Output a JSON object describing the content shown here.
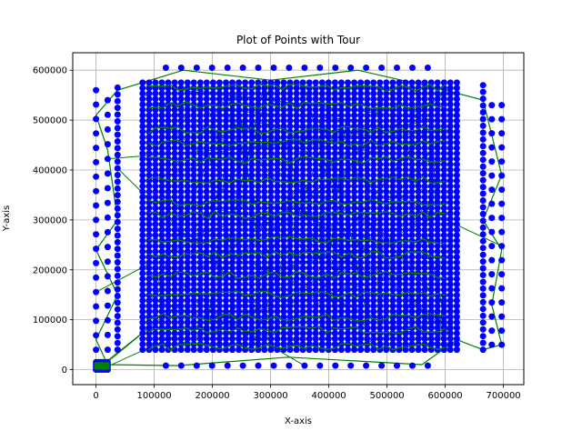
{
  "chart_data": {
    "type": "scatter",
    "title": "Plot of Points with Tour",
    "xlabel": "X-axis",
    "ylabel": "Y-axis",
    "xlim": [
      -40000,
      735000
    ],
    "ylim": [
      -30000,
      635000
    ],
    "x_ticks": [
      0,
      100000,
      200000,
      300000,
      400000,
      500000,
      600000,
      700000
    ],
    "y_ticks": [
      0,
      100000,
      200000,
      300000,
      400000,
      500000,
      600000
    ],
    "x_tick_labels": [
      "0",
      "100000",
      "200000",
      "300000",
      "400000",
      "500000",
      "600000",
      "700000"
    ],
    "y_tick_labels": [
      "0",
      "100000",
      "200000",
      "300000",
      "400000",
      "500000",
      "600000"
    ],
    "grid": true,
    "point_color": "#0000ff",
    "tour_color": "#007f00",
    "groups": [
      {
        "kind": "cluster",
        "x_range": [
          0,
          20000
        ],
        "y_range": [
          0,
          15000
        ],
        "nx": 6,
        "ny": 4
      },
      {
        "kind": "column",
        "x": 0,
        "y_range": [
          40000,
          560000
        ],
        "n": 19
      },
      {
        "kind": "column",
        "x": 20000,
        "y_range": [
          40000,
          540000
        ],
        "n": 18
      },
      {
        "kind": "column",
        "x": 37000,
        "y_range": [
          40000,
          565000
        ],
        "n": 40
      },
      {
        "kind": "grid",
        "x_range": [
          80000,
          620000
        ],
        "y_range": [
          40000,
          575000
        ],
        "nx": 50,
        "ny": 50
      },
      {
        "kind": "row",
        "y": 605000,
        "x_range": [
          120000,
          570000
        ],
        "n": 18
      },
      {
        "kind": "row",
        "y": 8000,
        "x_range": [
          120000,
          570000
        ],
        "n": 18
      },
      {
        "kind": "column",
        "x": 665000,
        "y_range": [
          40000,
          570000
        ],
        "n": 40
      },
      {
        "kind": "column",
        "x": 680000,
        "y_range": [
          50000,
          530000
        ],
        "n": 18
      },
      {
        "kind": "column",
        "x": 697000,
        "y_range": [
          50000,
          530000
        ],
        "n": 18
      }
    ],
    "tour": [
      [
        0,
        0
      ],
      [
        20000,
        10000
      ],
      [
        140000,
        8000
      ],
      [
        330000,
        25000
      ],
      [
        560000,
        10000
      ],
      [
        620000,
        60000
      ],
      [
        665000,
        40000
      ],
      [
        697000,
        50000
      ],
      [
        680000,
        130000
      ],
      [
        697000,
        240000
      ],
      [
        665000,
        300000
      ],
      [
        697000,
        390000
      ],
      [
        680000,
        470000
      ],
      [
        665000,
        540000
      ],
      [
        600000,
        560000
      ],
      [
        450000,
        600000
      ],
      [
        300000,
        580000
      ],
      [
        150000,
        600000
      ],
      [
        37000,
        560000
      ],
      [
        0,
        510000
      ],
      [
        20000,
        440000
      ],
      [
        37000,
        300000
      ],
      [
        0,
        240000
      ],
      [
        37000,
        150000
      ],
      [
        0,
        60000
      ],
      [
        20000,
        10000
      ]
    ],
    "bands": [
      {
        "y": 45000,
        "x_range": [
          90000,
          600000
        ]
      },
      {
        "y": 80000,
        "x_range": [
          90000,
          600000
        ]
      },
      {
        "y": 105000,
        "x_range": [
          90000,
          600000
        ]
      },
      {
        "y": 150000,
        "x_range": [
          90000,
          600000
        ]
      },
      {
        "y": 190000,
        "x_range": [
          90000,
          600000
        ]
      },
      {
        "y": 230000,
        "x_range": [
          90000,
          600000
        ]
      },
      {
        "y": 260000,
        "x_range": [
          90000,
          600000
        ]
      },
      {
        "y": 310000,
        "x_range": [
          90000,
          600000
        ]
      },
      {
        "y": 335000,
        "x_range": [
          90000,
          600000
        ]
      },
      {
        "y": 380000,
        "x_range": [
          90000,
          600000
        ]
      },
      {
        "y": 420000,
        "x_range": [
          90000,
          600000
        ]
      },
      {
        "y": 455000,
        "x_range": [
          90000,
          600000
        ]
      },
      {
        "y": 480000,
        "x_range": [
          90000,
          600000
        ]
      },
      {
        "y": 530000,
        "x_range": [
          90000,
          600000
        ]
      },
      {
        "y": 565000,
        "x_range": [
          90000,
          600000
        ]
      }
    ],
    "cross_links": 70
  }
}
